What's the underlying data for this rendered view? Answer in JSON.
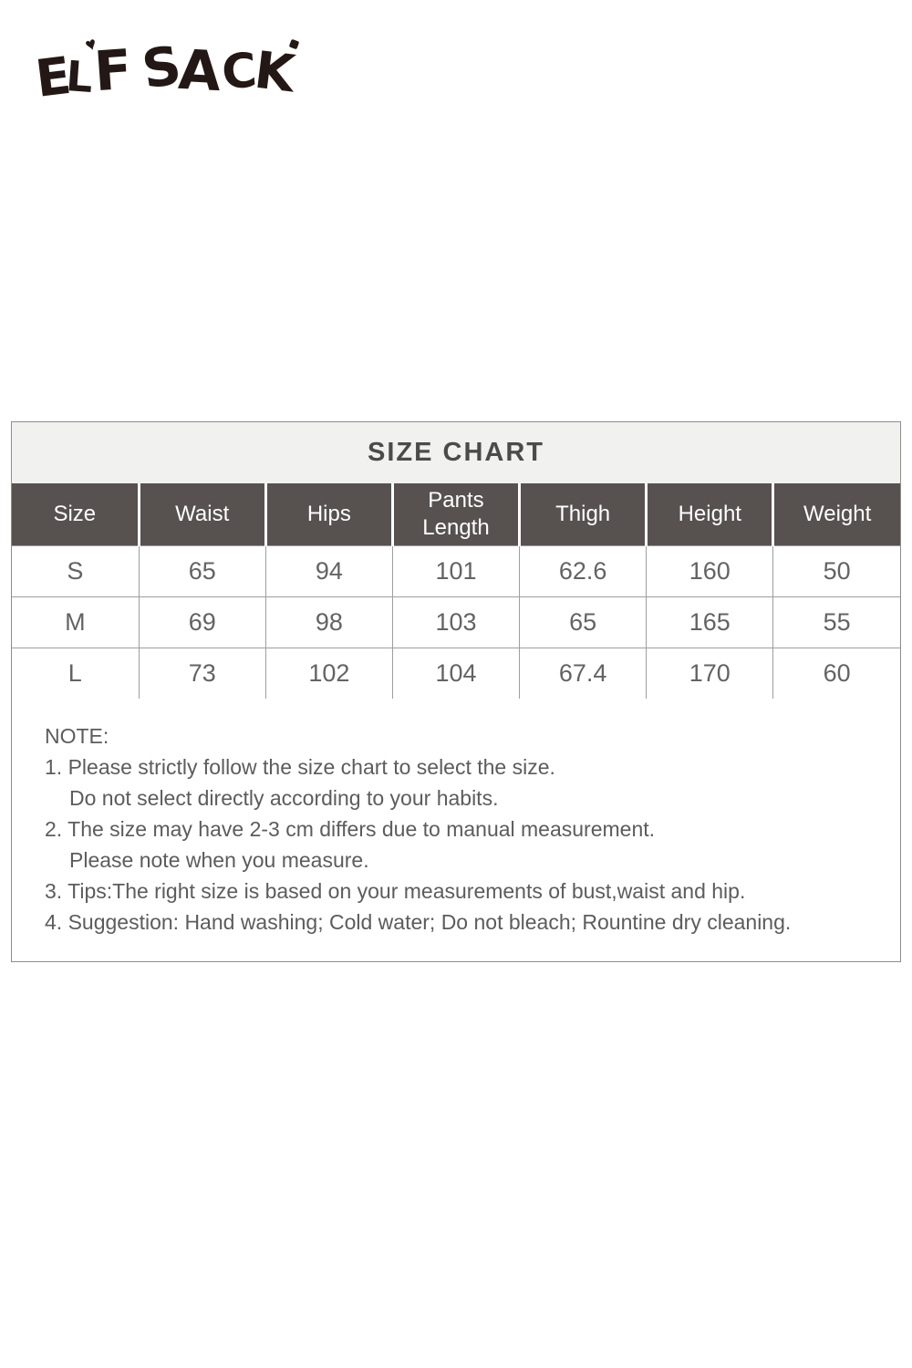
{
  "brand": {
    "name": "ELF SACK",
    "letters": [
      "E",
      "L",
      "F",
      "S",
      "A",
      "C",
      "K"
    ],
    "heart_mark": "♥"
  },
  "size_chart": {
    "title": "SIZE CHART",
    "columns": [
      "Size",
      "Waist",
      "Hips",
      "Pants Length",
      "Thigh",
      "Height",
      "Weight"
    ],
    "rows": [
      [
        "S",
        "65",
        "94",
        "101",
        "62.6",
        "160",
        "50"
      ],
      [
        "M",
        "69",
        "98",
        "103",
        "65",
        "165",
        "55"
      ],
      [
        "L",
        "73",
        "102",
        "104",
        "67.4",
        "170",
        "60"
      ]
    ]
  },
  "note": {
    "heading": "NOTE:",
    "lines": [
      "1. Please strictly follow the size chart to select the size.",
      "Do not select directly according to your habits.",
      "2. The size may have 2-3 cm differs due to manual measurement.",
      "Please note when you measure.",
      "3. Tips:The right size is based on your measurements of bust,waist and hip.",
      "4. Suggestion: Hand washing; Cold water; Do not bleach; Rountine dry cleaning."
    ]
  },
  "colors": {
    "header_bg": "#575150",
    "title_bg": "#f1f1ef",
    "border": "#8d8d8d",
    "text": "#5c5c5c",
    "logo": "#231815"
  }
}
